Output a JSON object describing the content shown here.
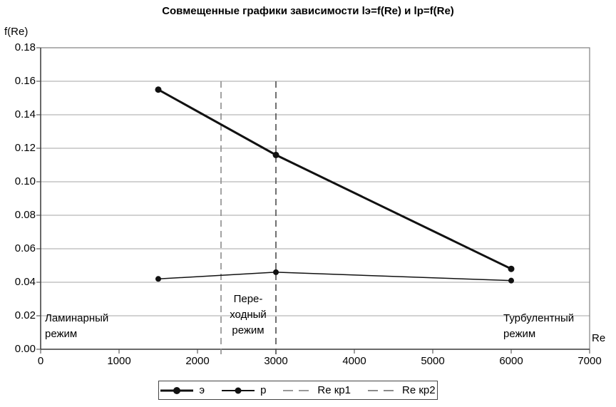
{
  "title": "Совмещенные графики зависимости lэ=f(Re) и lp=f(Re)",
  "axes": {
    "y_label": "f(Re)",
    "x_label": "Re"
  },
  "chart_data": {
    "type": "line",
    "title": "Совмещенные графики зависимости lэ=f(Re) и lp=f(Re)",
    "xlabel": "Re",
    "ylabel": "f(Re)",
    "xlim": [
      0,
      7000
    ],
    "ylim": [
      0,
      0.18
    ],
    "x_ticks": [
      0,
      1000,
      2000,
      3000,
      4000,
      5000,
      6000,
      7000
    ],
    "y_ticks": [
      0,
      0.02,
      0.04,
      0.06,
      0.08,
      0.1,
      0.12,
      0.14,
      0.16,
      0.18
    ],
    "y_tick_labels": [
      "0.00",
      "0.02",
      "0.04",
      "0.06",
      "0.08",
      "0.10",
      "0.12",
      "0.14",
      "0.16",
      "0.18"
    ],
    "grid": true,
    "legend_position": "bottom",
    "series": [
      {
        "name": "э",
        "x": [
          1500,
          3000,
          6000
        ],
        "y": [
          0.155,
          0.116,
          0.048
        ],
        "color": "#111111",
        "line_width": 3,
        "marker": "circle",
        "marker_radius": 4.5
      },
      {
        "name": "p",
        "x": [
          1500,
          3000,
          6000
        ],
        "y": [
          0.042,
          0.046,
          0.041
        ],
        "color": "#111111",
        "line_width": 1.5,
        "marker": "circle",
        "marker_radius": 4
      }
    ],
    "vlines": [
      {
        "name": "Re кр1",
        "x": 2300,
        "y_from": 0,
        "y_to": 0.16,
        "style": "dashed",
        "color": "#8c8c8c"
      },
      {
        "name": "Re кр2",
        "x": 3000,
        "y_from": 0,
        "y_to": 0.16,
        "style": "dashed",
        "color": "#4d4d4d"
      }
    ],
    "annotations": [
      {
        "lines": [
          "Ламинарный",
          "режим"
        ],
        "align": "left"
      },
      {
        "lines": [
          "Пере-",
          "ходный",
          "режим"
        ],
        "align": "center"
      },
      {
        "lines": [
          "Турбулентный",
          "режим"
        ],
        "align": "left"
      }
    ]
  },
  "legend": {
    "items": [
      {
        "label": "э",
        "swatch": "line-marker-thick"
      },
      {
        "label": "p",
        "swatch": "line-marker-thin"
      },
      {
        "label": "Re кр1",
        "swatch": "dashed",
        "color": "#999999"
      },
      {
        "label": "Re кр2",
        "swatch": "dashed",
        "color": "#8a8a8a"
      }
    ]
  },
  "colors": {
    "background": "#ffffff",
    "grid": "#a6a6a6",
    "frame": "#808080",
    "axis": "#404040",
    "series": "#111111",
    "text": "#000000"
  }
}
